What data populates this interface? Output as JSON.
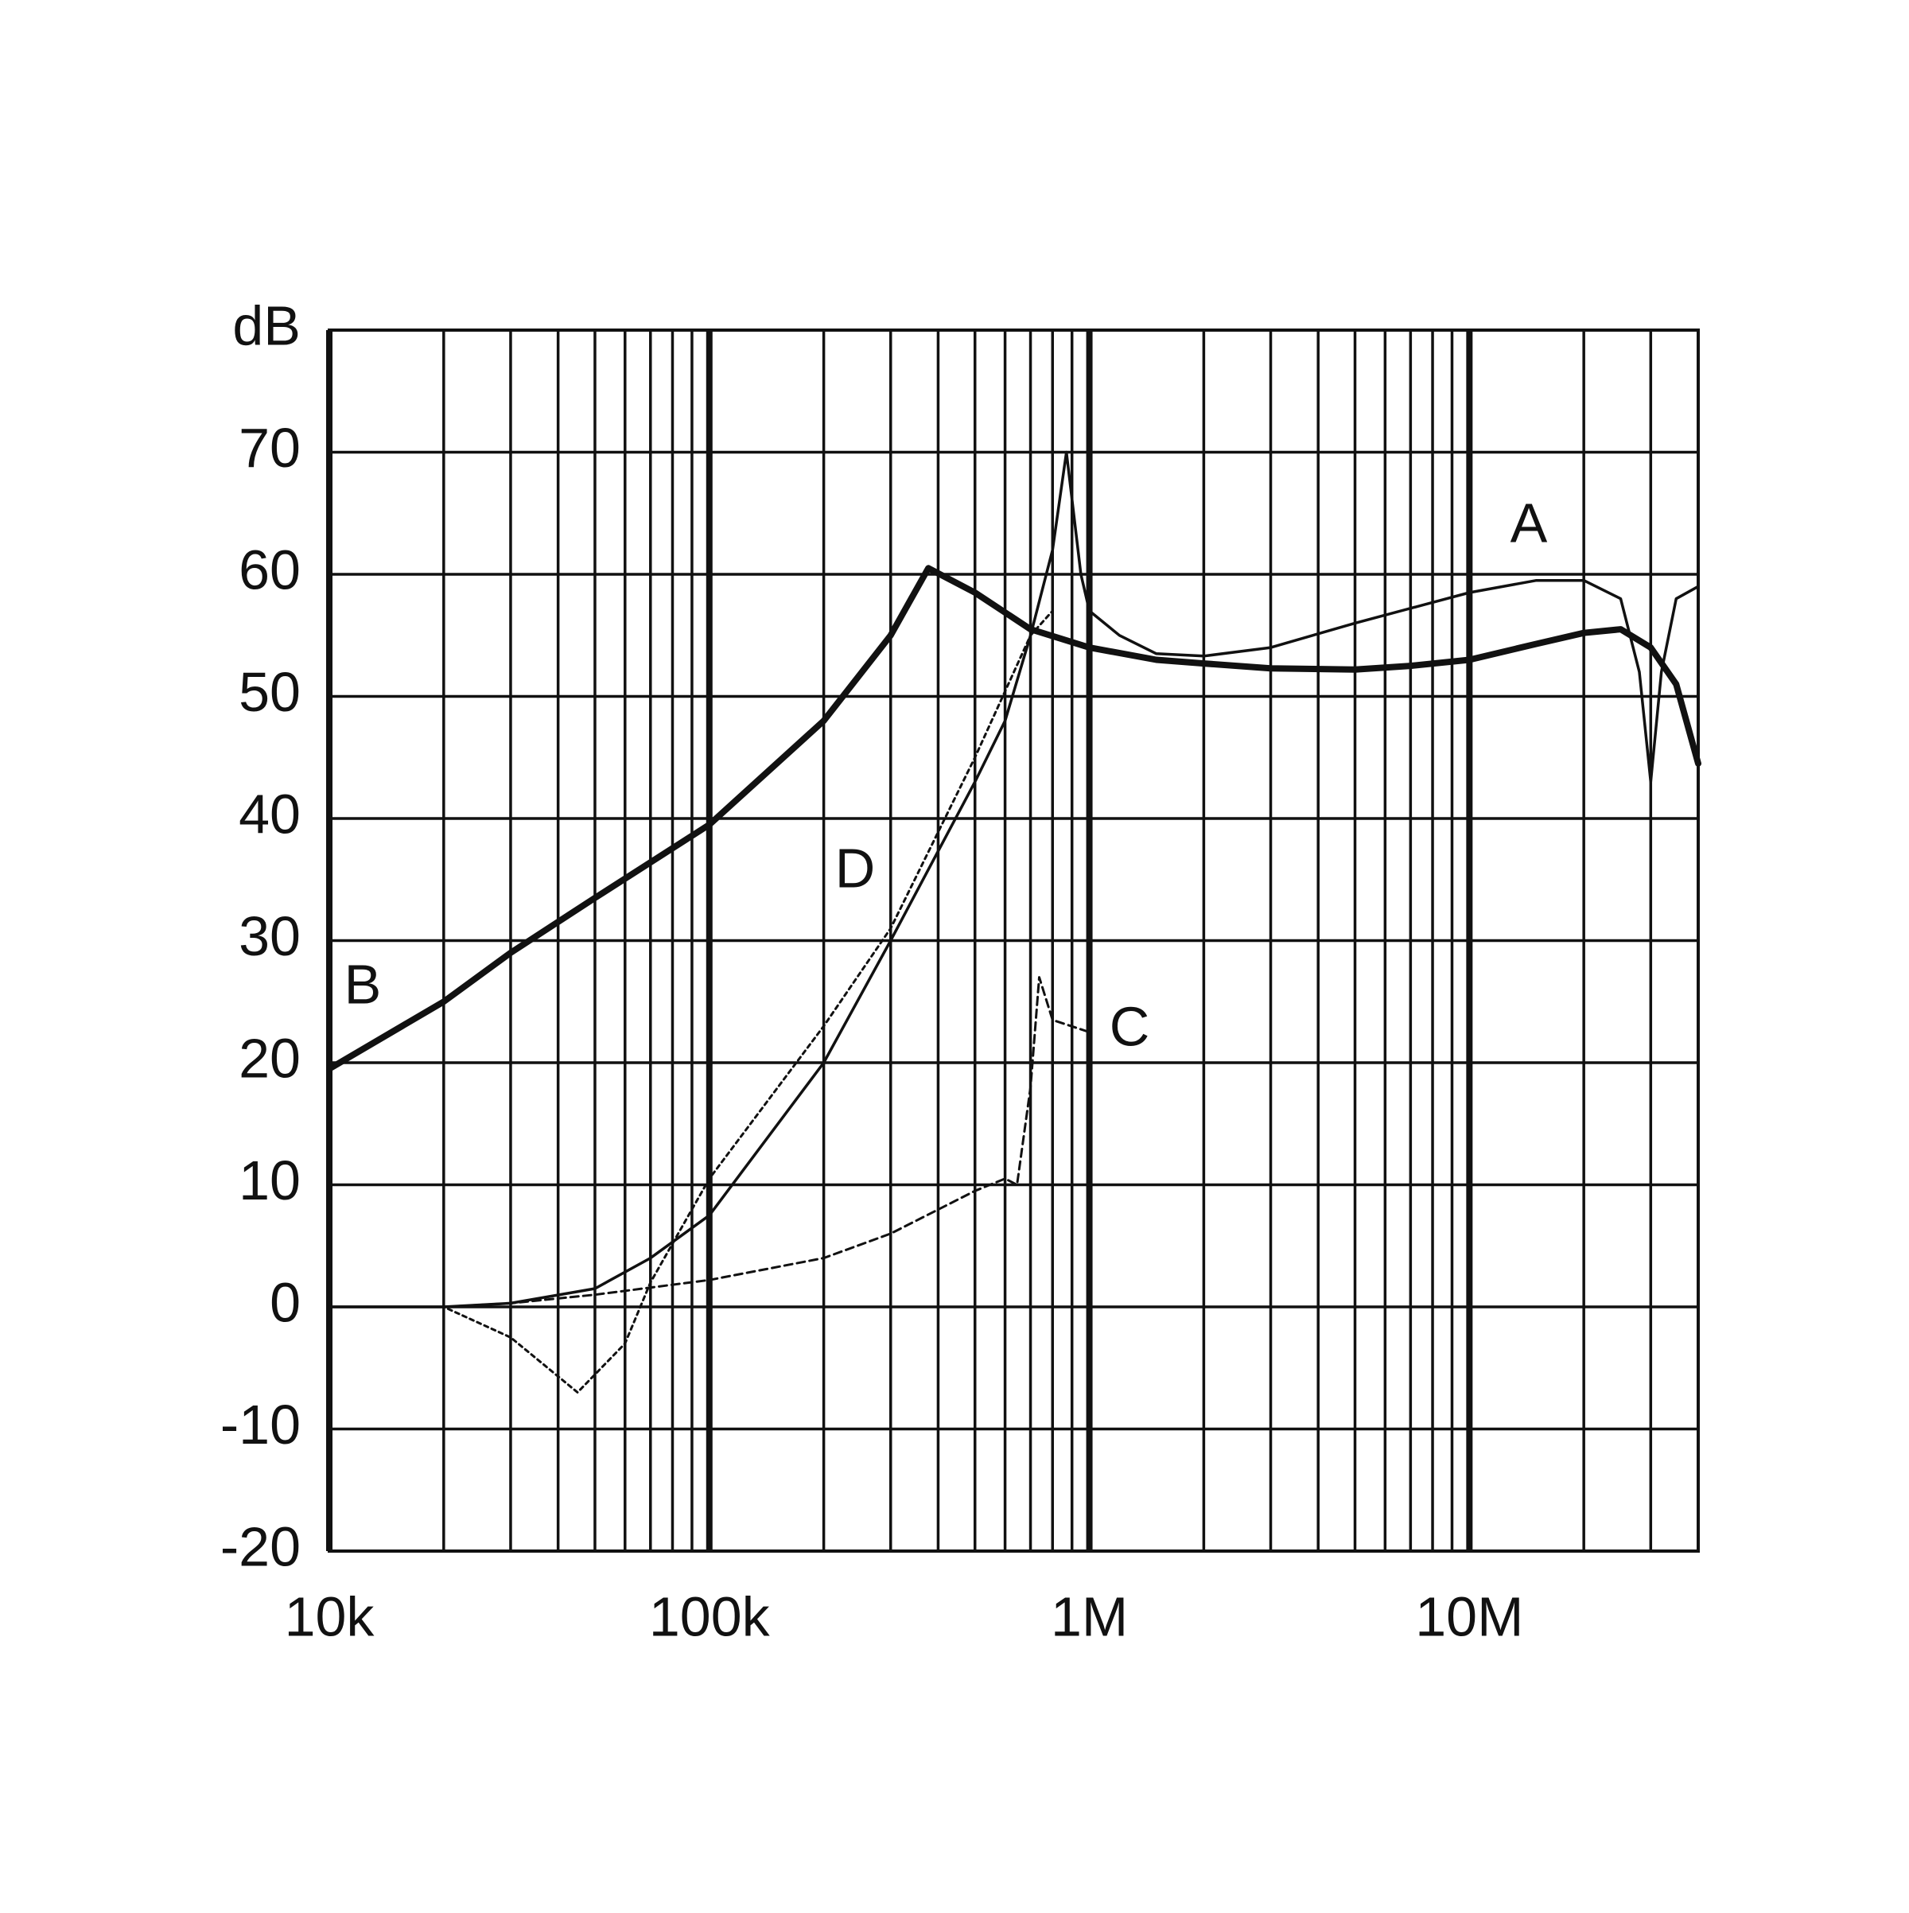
{
  "chart_data": {
    "type": "line",
    "xscale": "log",
    "xlim": [
      10000,
      40000000
    ],
    "ylim": [
      -20,
      80
    ],
    "xticks": [
      {
        "value": 10000,
        "label": "10k"
      },
      {
        "value": 100000,
        "label": "100k"
      },
      {
        "value": 1000000,
        "label": "1M"
      },
      {
        "value": 10000000,
        "label": "10M"
      }
    ],
    "minor_xticks": [
      20000,
      30000,
      40000,
      50000,
      60000,
      70000,
      80000,
      90000,
      200000,
      300000,
      400000,
      500000,
      600000,
      700000,
      800000,
      900000,
      2000000,
      3000000,
      4000000,
      5000000,
      6000000,
      7000000,
      8000000,
      9000000,
      20000000,
      30000000
    ],
    "yticks": [
      -20,
      -10,
      0,
      10,
      20,
      30,
      40,
      50,
      60,
      70,
      {
        "value": 80,
        "label": "dB"
      }
    ],
    "grid": true,
    "series": [
      {
        "name": "A",
        "color": "#111111",
        "line_width": 3.5,
        "dash": "solid",
        "x": [
          10000,
          20000,
          30000,
          50000,
          70000,
          100000,
          200000,
          300000,
          500000,
          600000,
          700000,
          800000,
          870000,
          950000,
          1000000,
          1200000,
          1500000,
          2000000,
          3000000,
          5000000,
          10000000,
          15000000,
          20000000,
          25000000,
          28000000,
          30000000,
          32000000,
          35000000,
          40000000
        ],
        "values": [
          0,
          0,
          0.3,
          1.5,
          4,
          7.5,
          20,
          30,
          43,
          48,
          55,
          62,
          70,
          60,
          57,
          55,
          53.5,
          53.3,
          54,
          56,
          58.5,
          59.5,
          59.5,
          58,
          52,
          43,
          52,
          58,
          59
        ]
      },
      {
        "name": "B",
        "color": "#111111",
        "line_width": 8,
        "dash": "solid",
        "x": [
          10000,
          20000,
          30000,
          50000,
          100000,
          200000,
          300000,
          377000,
          500000,
          700000,
          1000000,
          1500000,
          2000000,
          3000000,
          5000000,
          7000000,
          10000000,
          15000000,
          20000000,
          25000000,
          30000000,
          35000000,
          40000000
        ],
        "values": [
          19.5,
          25,
          29,
          33.5,
          39.5,
          48,
          55,
          60.5,
          58.5,
          55.5,
          54,
          53,
          52.7,
          52.3,
          52.2,
          52.5,
          53,
          54.3,
          55.2,
          55.5,
          54,
          51,
          44.5
        ]
      },
      {
        "name": "C",
        "color": "#111111",
        "line_width": 3,
        "dash": "dashed",
        "x": [
          20000,
          30000,
          50000,
          100000,
          200000,
          300000,
          500000,
          600000,
          645000,
          700000,
          738000,
          800000,
          1000000
        ],
        "values": [
          0,
          0.3,
          1,
          2.2,
          4,
          6,
          9.5,
          10.5,
          10,
          18,
          27,
          23.5,
          22.5
        ]
      },
      {
        "name": "D",
        "color": "#111111",
        "line_width": 3,
        "dash": "dotted",
        "x": [
          10000,
          20000,
          30000,
          45000,
          60000,
          70000,
          100000,
          200000,
          300000,
          500000,
          700000,
          800000
        ],
        "values": [
          0,
          0,
          -2.5,
          -7,
          -3,
          2,
          10.5,
          23,
          31,
          45,
          55,
          57
        ]
      }
    ]
  }
}
